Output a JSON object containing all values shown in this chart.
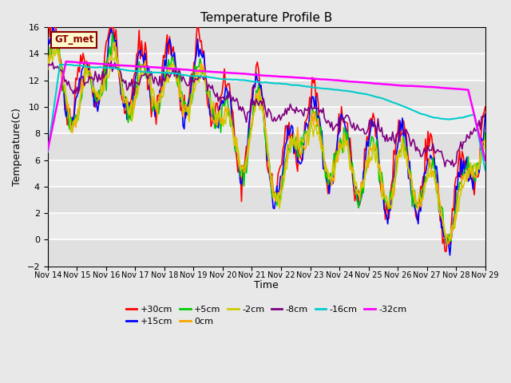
{
  "title": "Temperature Profile B",
  "xlabel": "Time",
  "ylabel": "Temperature(C)",
  "ylim": [
    -2,
    16
  ],
  "yticks": [
    -2,
    0,
    2,
    4,
    6,
    8,
    10,
    12,
    14,
    16
  ],
  "xtick_labels": [
    "Nov 14",
    "Nov 15",
    "Nov 16",
    "Nov 17",
    "Nov 18",
    "Nov 19",
    "Nov 20",
    "Nov 21",
    "Nov 22",
    "Nov 23",
    "Nov 24",
    "Nov 25",
    "Nov 26",
    "Nov 27",
    "Nov 28",
    "Nov 29"
  ],
  "annotation_text": "GT_met",
  "annotation_color": "#8B0000",
  "annotation_bg": "#FFFACD",
  "series": {
    "+30cm": {
      "color": "#FF0000",
      "lw": 1.2
    },
    "+15cm": {
      "color": "#0000FF",
      "lw": 1.2
    },
    "+5cm": {
      "color": "#00CC00",
      "lw": 1.2
    },
    "0cm": {
      "color": "#FFA500",
      "lw": 1.2
    },
    "-2cm": {
      "color": "#CCCC00",
      "lw": 1.2
    },
    "-8cm": {
      "color": "#800080",
      "lw": 1.2
    },
    "-16cm": {
      "color": "#00CCCC",
      "lw": 1.5
    },
    "-32cm": {
      "color": "#FF00FF",
      "lw": 1.8
    }
  },
  "bg_color": "#E8E8E8",
  "band_colors": [
    "#E0E0E0",
    "#EBEBEB"
  ],
  "grid_color": "#FFFFFF",
  "grid_lw": 1.2,
  "legend_row1": [
    "+30cm",
    "+15cm",
    "+5cm",
    "0cm",
    "-2cm",
    "-8cm"
  ],
  "legend_row2": [
    "-16cm",
    "-32cm"
  ]
}
